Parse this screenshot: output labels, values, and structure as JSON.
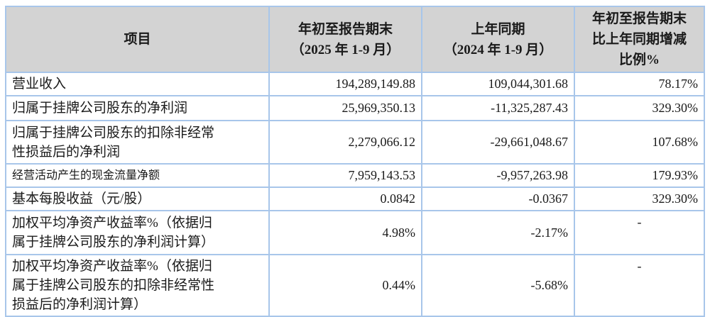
{
  "colors": {
    "table_border": "#a8c6ea",
    "header_bg": "#d3d3d3",
    "text": "#1a1a1a"
  },
  "table": {
    "headers": {
      "item": "项目",
      "current_period": "年初至报告期末\n（2025 年 1-9 月）",
      "prior_period": "上年同期\n（2024 年 1-9 月）",
      "change_ratio": "年初至报告期末\n比上年同期增减\n比例%"
    },
    "rows": [
      {
        "label": "营业收入",
        "current": "194,289,149.88",
        "prior": "109,044,301.68",
        "change": "78.17%"
      },
      {
        "label": "归属于挂牌公司股东的净利润",
        "current": "25,969,350.13",
        "prior": "-11,325,287.43",
        "change": "329.30%"
      },
      {
        "label": "归属于挂牌公司股东的扣除非经常\n性损益后的净利润",
        "current": "2,279,066.12",
        "prior": "-29,661,048.67",
        "change": "107.68%"
      },
      {
        "label": "经营活动产生的现金流量净额",
        "current": "7,959,143.53",
        "prior": "-9,957,263.98",
        "change": "179.93%"
      },
      {
        "label": "基本每股收益（元/股）",
        "current": "0.0842",
        "prior": "-0.0367",
        "change": "329.30%"
      },
      {
        "label": "加权平均净资产收益率%（依据归\n属于挂牌公司股东的净利润计算）",
        "current": "4.98%",
        "prior": "-2.17%",
        "change": "-"
      },
      {
        "label": "加权平均净资产收益率%（依据归\n属于挂牌公司股东的扣除非经常性\n损益后的净利润计算）",
        "current": "0.44%",
        "prior": "-5.68%",
        "change": "-"
      }
    ]
  }
}
